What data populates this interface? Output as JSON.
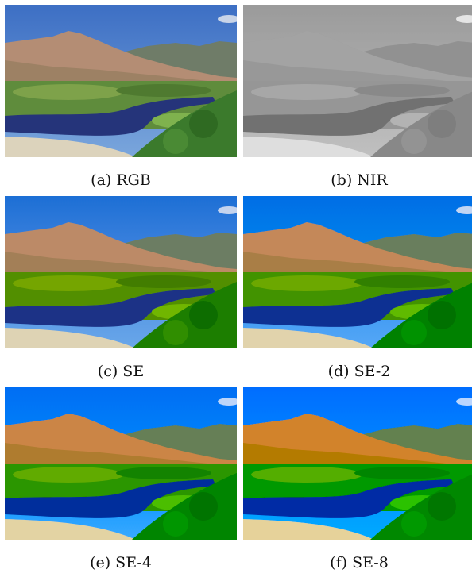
{
  "figure": {
    "panels": [
      {
        "caption": "(a) RGB"
      },
      {
        "caption": "(b) NIR"
      },
      {
        "caption": "(c) SE"
      },
      {
        "caption": "(d) SE-2"
      },
      {
        "caption": "(e) SE-4"
      },
      {
        "caption": "(f) SE-8"
      }
    ]
  }
}
